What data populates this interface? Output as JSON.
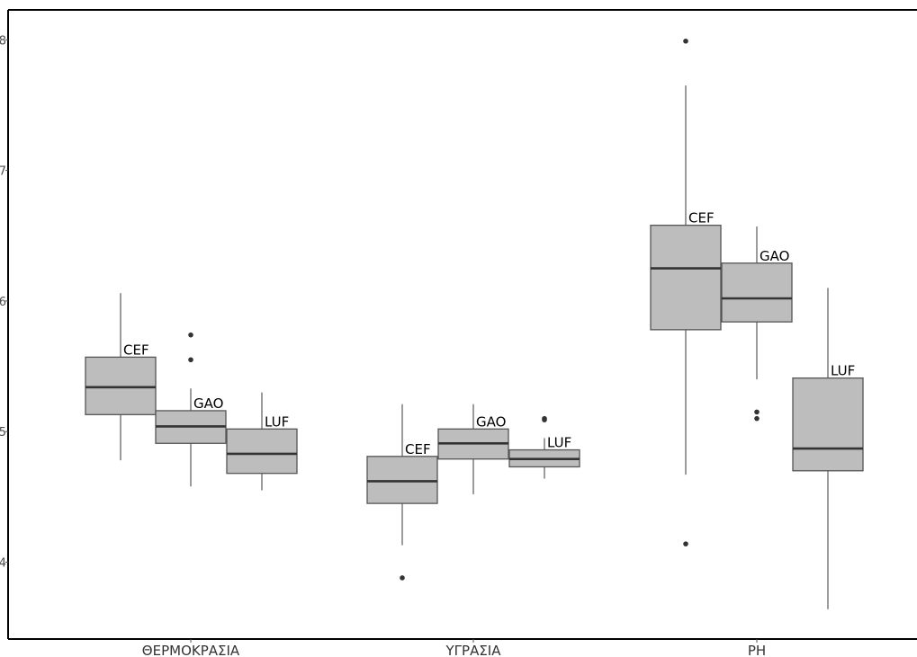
{
  "chart_data": {
    "type": "box",
    "categories": [
      "ΘΕΡΜΟΚΡΑΣΙΑ",
      "ΥΓΡΑΣΙΑ",
      "PH"
    ],
    "group_labels": [
      "CEF",
      "GAO",
      "LUF"
    ],
    "y_ticks": [
      "4",
      "5",
      "6",
      "7",
      "8"
    ],
    "ylim": [
      3.38,
      8.23
    ],
    "grid": false,
    "legend": "none",
    "colors": {
      "box_fill": "#bdbdbd",
      "box_stroke": "#555555",
      "median": "#333333",
      "outlier": "#333333",
      "axis": "#000000"
    },
    "boxes": [
      {
        "category": "ΘΕΡΜΟΚΡΑΣΙΑ",
        "group": "CEF",
        "min": 4.78,
        "q1": 5.13,
        "median": 5.34,
        "q3": 5.57,
        "max": 6.06,
        "outliers": []
      },
      {
        "category": "ΘΕΡΜΟΚΡΑΣΙΑ",
        "group": "GAO",
        "min": 4.58,
        "q1": 4.91,
        "median": 5.04,
        "q3": 5.16,
        "max": 5.33,
        "outliers": [
          5.55,
          5.74
        ]
      },
      {
        "category": "ΘΕΡΜΟΚΡΑΣΙΑ",
        "group": "LUF",
        "min": 4.55,
        "q1": 4.68,
        "median": 4.83,
        "q3": 5.02,
        "max": 5.3,
        "outliers": []
      },
      {
        "category": "ΥΓΡΑΣΙΑ",
        "group": "CEF",
        "min": 4.13,
        "q1": 4.45,
        "median": 4.62,
        "q3": 4.81,
        "max": 5.21,
        "outliers": [
          3.88
        ]
      },
      {
        "category": "ΥΓΡΑΣΙΑ",
        "group": "GAO",
        "min": 4.52,
        "q1": 4.79,
        "median": 4.91,
        "q3": 5.02,
        "max": 5.21,
        "outliers": []
      },
      {
        "category": "ΥΓΡΑΣΙΑ",
        "group": "LUF",
        "min": 4.64,
        "q1": 4.73,
        "median": 4.79,
        "q3": 4.86,
        "max": 4.95,
        "outliers": [
          5.09,
          5.1
        ]
      },
      {
        "category": "PH",
        "group": "CEF",
        "min": 4.67,
        "q1": 5.78,
        "median": 6.25,
        "q3": 6.58,
        "max": 7.65,
        "outliers": [
          4.14,
          7.99
        ]
      },
      {
        "category": "PH",
        "group": "GAO",
        "min": 5.4,
        "q1": 5.84,
        "median": 6.02,
        "q3": 6.29,
        "max": 6.57,
        "outliers": [
          5.1,
          5.15
        ]
      },
      {
        "category": "PH",
        "group": "LUF",
        "min": 3.64,
        "q1": 4.7,
        "median": 4.87,
        "q3": 5.41,
        "max": 6.1,
        "outliers": []
      }
    ]
  }
}
